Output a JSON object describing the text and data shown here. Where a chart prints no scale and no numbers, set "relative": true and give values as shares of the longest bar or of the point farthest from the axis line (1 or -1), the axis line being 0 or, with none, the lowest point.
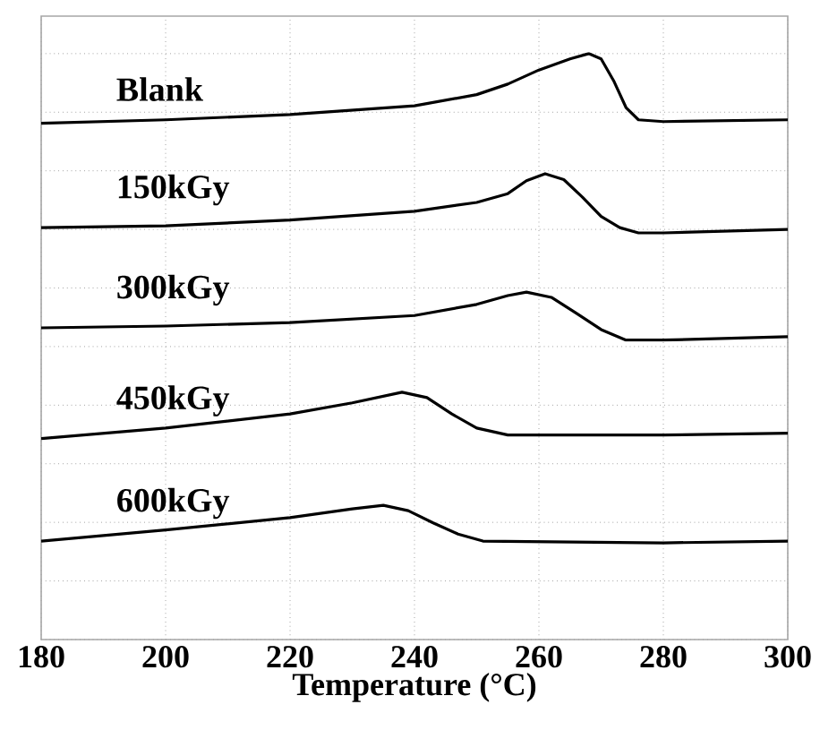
{
  "chart_data": {
    "type": "line",
    "xlabel": "Temperature (°C)",
    "relative": true,
    "grid": true,
    "legend": false,
    "tick_labels": "x",
    "xlim": [
      180,
      300
    ],
    "xticks": [
      180,
      200,
      220,
      240,
      260,
      280,
      300
    ],
    "series": [
      {
        "name": "Blank",
        "color": "#000000",
        "x": [
          180,
          200,
          220,
          240,
          250,
          255,
          260,
          265,
          268,
          270,
          272,
          274,
          276,
          280,
          300
        ],
        "values": [
          0.881,
          0.887,
          0.896,
          0.911,
          0.93,
          0.948,
          0.972,
          0.991,
          1.0,
          0.991,
          0.954,
          0.908,
          0.887,
          0.884,
          0.887
        ]
      },
      {
        "name": "150kGy",
        "color": "#000000",
        "x": [
          180,
          200,
          220,
          240,
          250,
          255,
          258,
          261,
          264,
          267,
          270,
          273,
          276,
          280,
          300
        ],
        "values": [
          0.703,
          0.706,
          0.716,
          0.731,
          0.746,
          0.761,
          0.783,
          0.795,
          0.785,
          0.755,
          0.722,
          0.703,
          0.694,
          0.694,
          0.7
        ]
      },
      {
        "name": "300kGy",
        "color": "#000000",
        "x": [
          180,
          200,
          220,
          240,
          250,
          255,
          258,
          262,
          266,
          270,
          274,
          280,
          300
        ],
        "values": [
          0.532,
          0.535,
          0.541,
          0.553,
          0.572,
          0.587,
          0.593,
          0.584,
          0.557,
          0.529,
          0.511,
          0.511,
          0.517
        ]
      },
      {
        "name": "450kGy",
        "color": "#000000",
        "x": [
          180,
          200,
          220,
          230,
          238,
          242,
          246,
          250,
          255,
          280,
          300
        ],
        "values": [
          0.343,
          0.361,
          0.385,
          0.404,
          0.422,
          0.413,
          0.385,
          0.361,
          0.349,
          0.349,
          0.352
        ]
      },
      {
        "name": "600kGy",
        "color": "#000000",
        "x": [
          180,
          200,
          220,
          230,
          235,
          239,
          243,
          247,
          251,
          280,
          300
        ],
        "values": [
          0.168,
          0.187,
          0.208,
          0.223,
          0.229,
          0.22,
          0.199,
          0.18,
          0.168,
          0.165,
          0.168
        ]
      }
    ]
  }
}
